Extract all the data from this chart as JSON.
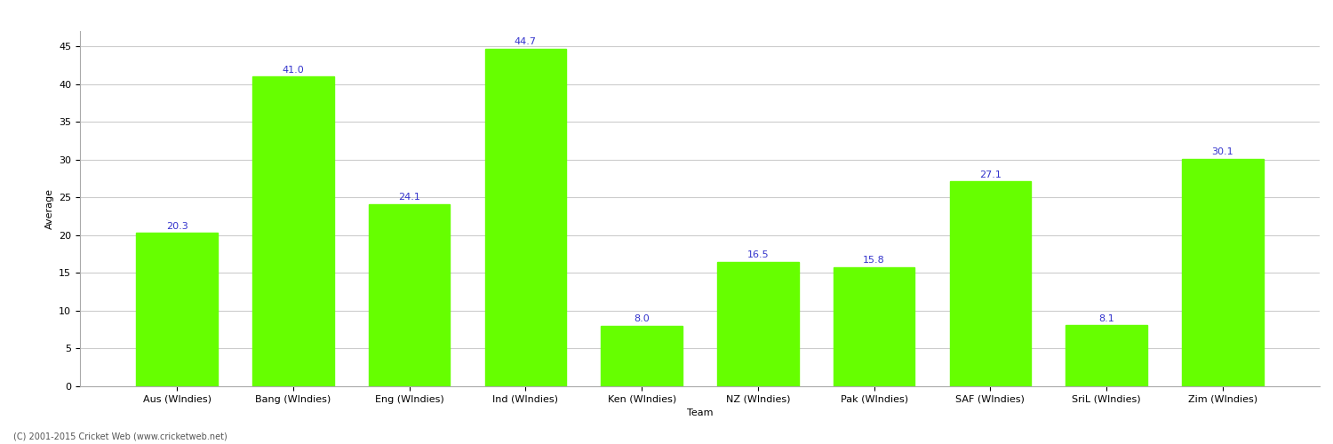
{
  "categories": [
    "Aus (WIndies)",
    "Bang (WIndies)",
    "Eng (WIndies)",
    "Ind (WIndies)",
    "Ken (WIndies)",
    "NZ (WIndies)",
    "Pak (WIndies)",
    "SAF (WIndies)",
    "SriL (WIndies)",
    "Zim (WIndies)"
  ],
  "values": [
    20.3,
    41.0,
    24.1,
    44.7,
    8.0,
    16.5,
    15.8,
    27.1,
    8.1,
    30.1
  ],
  "bar_color": "#66ff00",
  "bar_edge_color": "#66ff00",
  "label_color": "#3333cc",
  "ylabel": "Average",
  "xlabel": "Team",
  "ylim": [
    0,
    47
  ],
  "yticks": [
    0,
    5,
    10,
    15,
    20,
    25,
    30,
    35,
    40,
    45
  ],
  "label_fontsize": 8,
  "axis_fontsize": 8,
  "tick_fontsize": 8,
  "footnote": "(C) 2001-2015 Cricket Web (www.cricketweb.net)",
  "background_color": "#ffffff",
  "grid_color": "#cccccc"
}
